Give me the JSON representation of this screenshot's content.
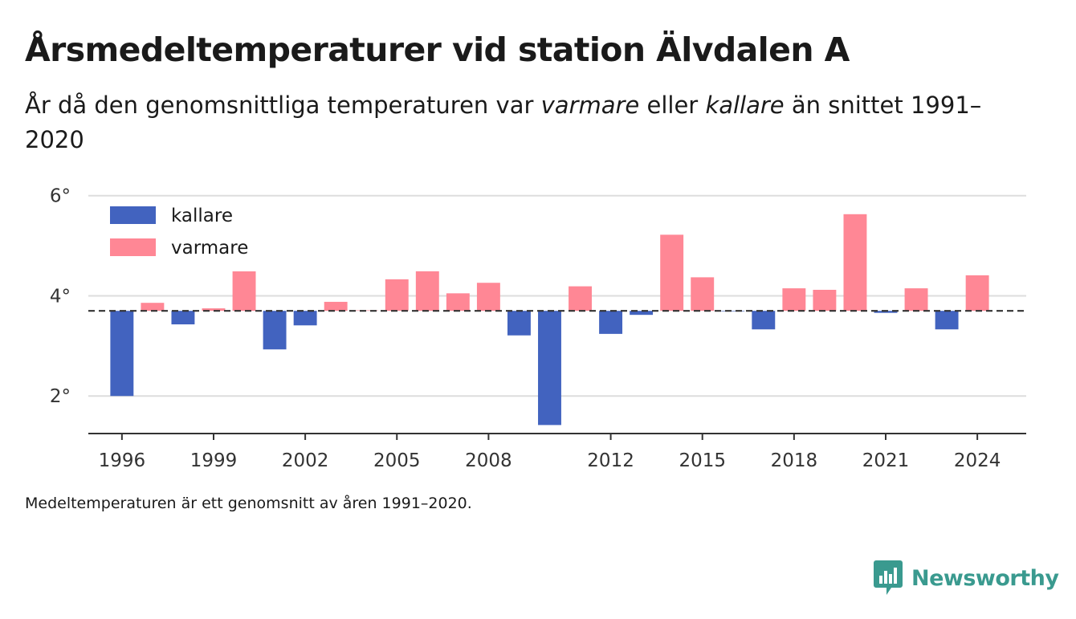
{
  "title": "Årsmedeltemperaturer vid station Älvdalen A",
  "subtitle": {
    "part1": "År då den genomsnittliga temperaturen var ",
    "warm_word": "varmare",
    "part2": " eller ",
    "cold_word": "kallare",
    "part3": " än snittet 1991–2020"
  },
  "footnote": "Medeltemperaturen är ett genomsnitt av åren 1991–2020.",
  "brand": {
    "name": "Newsworthy",
    "color": "#3a9a8f"
  },
  "colors": {
    "cold": "#4263bf",
    "warm": "#ff8795",
    "grid": "#dddddd",
    "axis": "#333333",
    "baseline": "#333333"
  },
  "chart_data": {
    "type": "bar",
    "baseline": 3.7,
    "ylim": [
      1.25,
      6.3
    ],
    "xlim": [
      1994.9,
      2025.6
    ],
    "y_ticks": [
      2,
      4,
      6
    ],
    "y_tick_labels": [
      "2°",
      "4°",
      "6°"
    ],
    "x_ticks": [
      1996,
      1999,
      2002,
      2005,
      2008,
      2012,
      2015,
      2018,
      2021,
      2024
    ],
    "x_tick_labels": [
      "1996",
      "1999",
      "2002",
      "2005",
      "2008",
      "2012",
      "2015",
      "2018",
      "2021",
      "2024"
    ],
    "legend": [
      {
        "key": "cold",
        "label": "kallare"
      },
      {
        "key": "warm",
        "label": "varmare"
      }
    ],
    "legend_position": "top-left",
    "grid": true,
    "bars": [
      {
        "year": 1996,
        "value": 2.0
      },
      {
        "year": 1997,
        "value": 3.86
      },
      {
        "year": 1998,
        "value": 3.43
      },
      {
        "year": 1999,
        "value": 3.75
      },
      {
        "year": 2000,
        "value": 4.57
      },
      {
        "year": 2001,
        "value": 2.93
      },
      {
        "year": 2002,
        "value": 3.41
      },
      {
        "year": 2003,
        "value": 3.88
      },
      {
        "year": 2004,
        "value": 3.71
      },
      {
        "year": 2005,
        "value": 4.33
      },
      {
        "year": 2006,
        "value": 4.49
      },
      {
        "year": 2007,
        "value": 4.05
      },
      {
        "year": 2008,
        "value": 4.26
      },
      {
        "year": 2009,
        "value": 3.21
      },
      {
        "year": 2010,
        "value": 1.42
      },
      {
        "year": 2011,
        "value": 4.19
      },
      {
        "year": 2012,
        "value": 3.24
      },
      {
        "year": 2013,
        "value": 3.62
      },
      {
        "year": 2014,
        "value": 5.22
      },
      {
        "year": 2015,
        "value": 4.37
      },
      {
        "year": 2016,
        "value": 3.69
      },
      {
        "year": 2017,
        "value": 3.33
      },
      {
        "year": 2018,
        "value": 4.15
      },
      {
        "year": 2019,
        "value": 4.12
      },
      {
        "year": 2020,
        "value": 5.63
      },
      {
        "year": 2021,
        "value": 3.66
      },
      {
        "year": 2022,
        "value": 4.15
      },
      {
        "year": 2023,
        "value": 3.33
      },
      {
        "year": 2024,
        "value": 4.41
      }
    ]
  }
}
